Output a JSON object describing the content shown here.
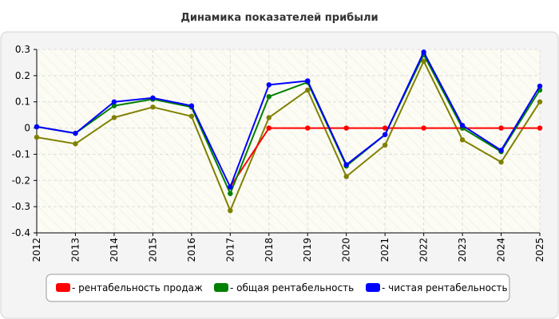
{
  "chart_data": {
    "type": "line",
    "title": "Динамика показателей прибыли",
    "categories": [
      "2012",
      "2013",
      "2014",
      "2015",
      "2016",
      "2017",
      "2018",
      "2019",
      "2020",
      "2021",
      "2022",
      "2023",
      "2024",
      "2025"
    ],
    "ylim": [
      -0.4,
      0.3
    ],
    "yticks": [
      0.3,
      0.2,
      0.1,
      0,
      -0.1,
      -0.2,
      -0.3,
      -0.4
    ],
    "grid": true,
    "legend_position": "bottom",
    "series": [
      {
        "name": "- рентабельность продаж",
        "color": "#ff0000",
        "values": [
          null,
          null,
          null,
          null,
          null,
          -0.225,
          0,
          0,
          0,
          0,
          0,
          0,
          0,
          0
        ]
      },
      {
        "name": "- общая рентабельность",
        "color": "#008000",
        "values": [
          0.005,
          -0.02,
          0.085,
          0.11,
          0.08,
          -0.25,
          0.12,
          0.175,
          -0.145,
          -0.025,
          0.28,
          0.0,
          -0.09,
          0.145
        ]
      },
      {
        "name": "- чистая рентабельность",
        "color": "#0000ff",
        "values": [
          0.005,
          -0.02,
          0.1,
          0.115,
          0.085,
          -0.225,
          0.165,
          0.18,
          -0.14,
          -0.025,
          0.29,
          0.01,
          -0.085,
          0.16
        ]
      },
      {
        "name": "",
        "color": "#808000",
        "values": [
          -0.035,
          -0.06,
          0.04,
          0.08,
          0.045,
          -0.315,
          0.04,
          0.145,
          -0.185,
          -0.065,
          0.255,
          -0.045,
          -0.13,
          0.1
        ]
      }
    ]
  }
}
